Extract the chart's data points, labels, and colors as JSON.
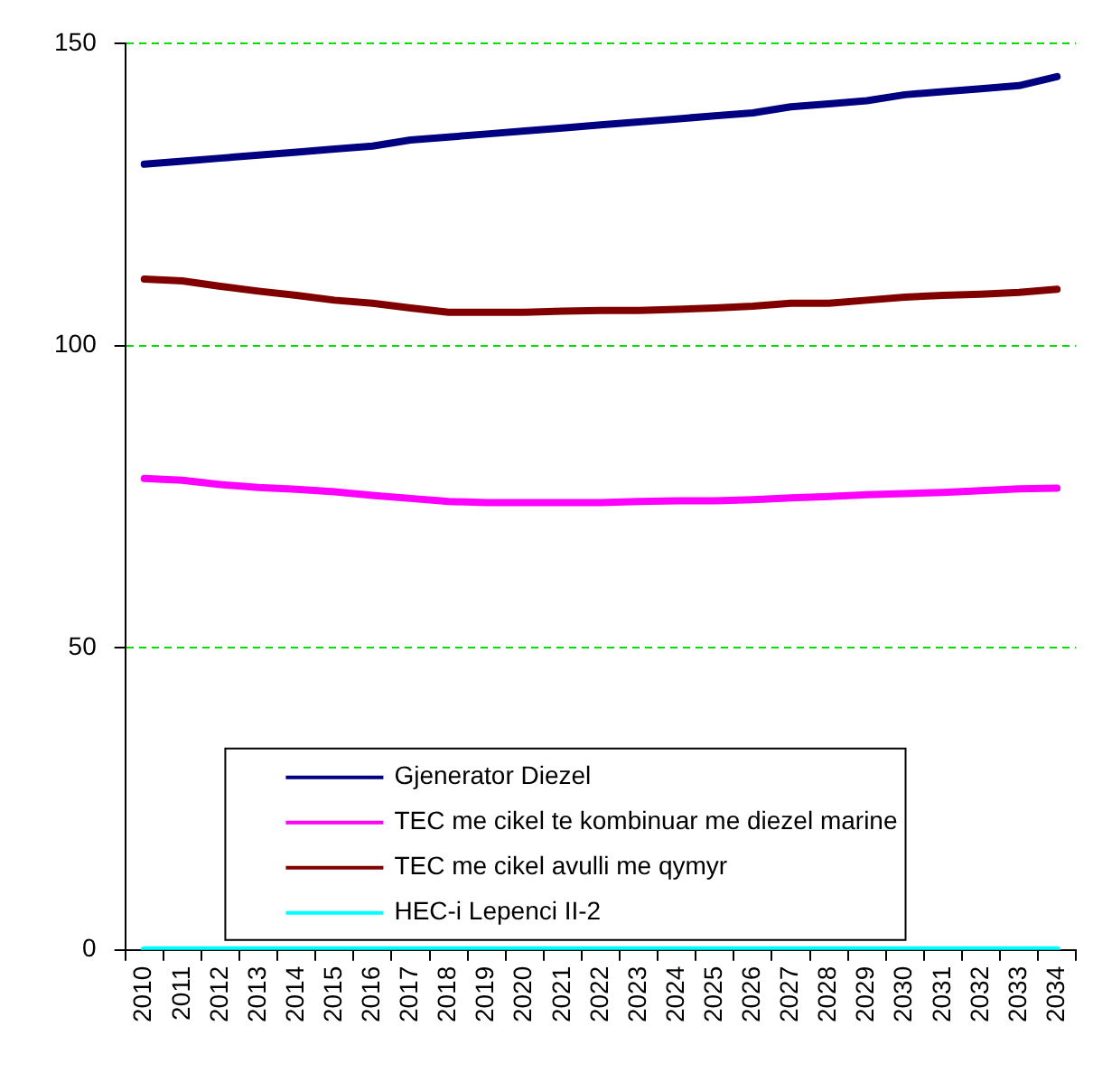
{
  "chart_data": {
    "type": "line",
    "categories": [
      "2010",
      "2011",
      "2012",
      "2013",
      "2014",
      "2015",
      "2016",
      "2017",
      "2018",
      "2019",
      "2020",
      "2021",
      "2022",
      "2023",
      "2024",
      "2025",
      "2026",
      "2027",
      "2028",
      "2029",
      "2030",
      "2031",
      "2032",
      "2033",
      "2034"
    ],
    "series": [
      {
        "name": "Gjenerator Diezel",
        "color": "#000080",
        "values": [
          130,
          130.5,
          131,
          131.5,
          132,
          132.5,
          133,
          134,
          134.5,
          135,
          135.5,
          136,
          136.5,
          137,
          137.5,
          138,
          138.5,
          139.5,
          140,
          140.5,
          141.5,
          142,
          142.5,
          143,
          144.5
        ]
      },
      {
        "name": "TEC me cikel te kombinuar me diezel marine",
        "color": "#ff00ff",
        "values": [
          78,
          77.7,
          77,
          76.5,
          76.2,
          75.8,
          75.2,
          74.7,
          74.2,
          74,
          74,
          74,
          74,
          74.2,
          74.3,
          74.3,
          74.5,
          74.8,
          75,
          75.3,
          75.5,
          75.7,
          76,
          76.3,
          76.4
        ]
      },
      {
        "name": "TEC me cikel avulli me qymyr",
        "color": "#800000",
        "values": [
          111,
          110.7,
          109.8,
          109,
          108.3,
          107.5,
          107,
          106.2,
          105.5,
          105.5,
          105.5,
          105.7,
          105.8,
          105.8,
          106,
          106.2,
          106.5,
          107,
          107,
          107.5,
          108,
          108.3,
          108.5,
          108.8,
          109.3
        ]
      },
      {
        "name": "HEC-i Lepenci II-2",
        "color": "#00ffff",
        "values": [
          0,
          0,
          0,
          0,
          0,
          0,
          0,
          0,
          0,
          0,
          0,
          0,
          0,
          0,
          0,
          0,
          0,
          0,
          0,
          0,
          0,
          0,
          0,
          0,
          0
        ]
      }
    ],
    "ylim": [
      0,
      150
    ],
    "yticks": [
      0,
      50,
      100,
      150
    ],
    "grid": "y",
    "legend": "bottom",
    "marker": "none",
    "line_style": "solid"
  }
}
